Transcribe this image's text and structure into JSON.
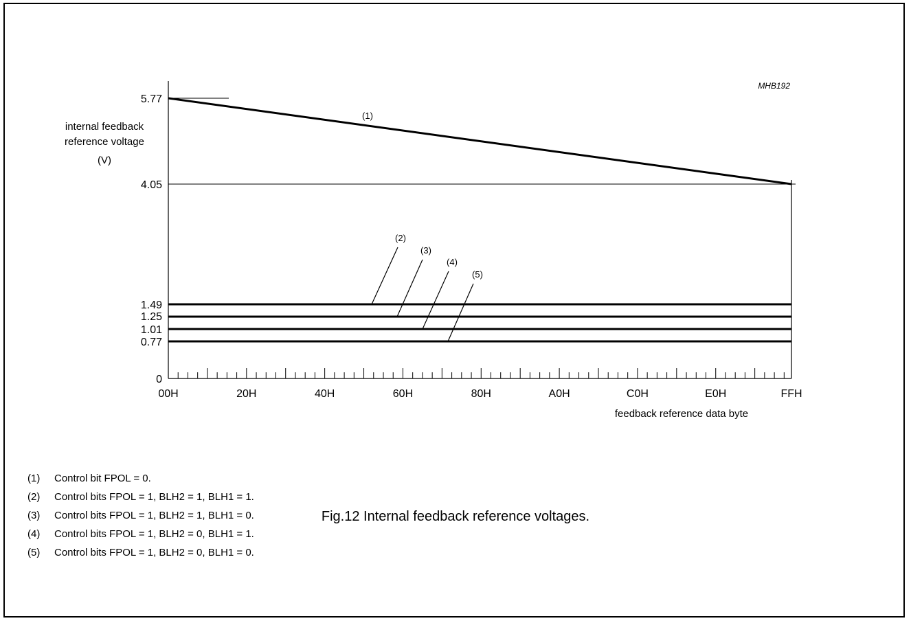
{
  "figure_id": "MHB192",
  "caption": "Fig.12  Internal feedback reference voltages.",
  "chart_data": {
    "type": "line",
    "title": "",
    "ylabel_lines": [
      "internal feedback",
      "reference voltage",
      "(V)"
    ],
    "xlabel": "feedback reference data byte",
    "x_categories": [
      "00H",
      "20H",
      "40H",
      "60H",
      "80H",
      "A0H",
      "C0H",
      "E0H",
      "FFH"
    ],
    "x_numeric": [
      0,
      32,
      64,
      96,
      128,
      160,
      192,
      224,
      255
    ],
    "xlim": [
      0,
      255
    ],
    "y_ticks": [
      0,
      0.77,
      1.01,
      1.25,
      1.49,
      4.05,
      5.77
    ],
    "y_tick_labels": [
      "0",
      "0.77",
      "1.01",
      "1.25",
      "1.49",
      "4.05",
      "5.77"
    ],
    "series": [
      {
        "label": "(1)",
        "x": [
          0,
          255
        ],
        "y": [
          5.77,
          4.05
        ]
      },
      {
        "label": "(2)",
        "x": [
          0,
          255
        ],
        "y": [
          1.49,
          1.49
        ]
      },
      {
        "label": "(3)",
        "x": [
          0,
          255
        ],
        "y": [
          1.25,
          1.25
        ]
      },
      {
        "label": "(4)",
        "x": [
          0,
          255
        ],
        "y": [
          1.01,
          1.01
        ]
      },
      {
        "label": "(5)",
        "x": [
          0,
          255
        ],
        "y": [
          0.77,
          0.77
        ]
      }
    ]
  },
  "notes": [
    {
      "num": "(1)",
      "text": "Control bit FPOL = 0."
    },
    {
      "num": "(2)",
      "text": "Control bits FPOL = 1, BLH2 = 1, BLH1 = 1."
    },
    {
      "num": "(3)",
      "text": "Control bits FPOL = 1, BLH2 = 1, BLH1 = 0."
    },
    {
      "num": "(4)",
      "text": "Control bits FPOL = 1, BLH2 = 0, BLH1 = 1."
    },
    {
      "num": "(5)",
      "text": "Control bits FPOL = 1, BLH2 = 0, BLH1 = 0."
    }
  ]
}
